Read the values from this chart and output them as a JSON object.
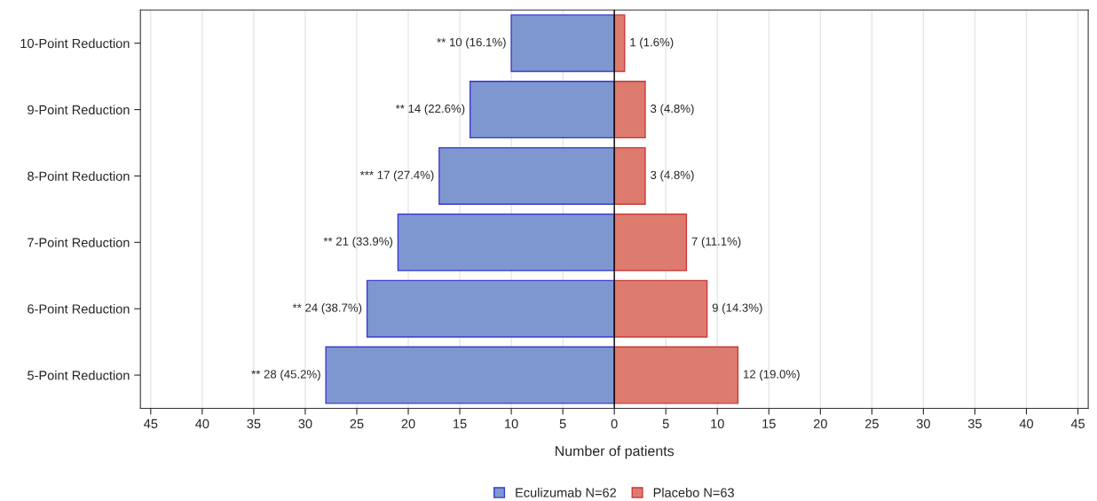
{
  "chart_data": {
    "type": "bar",
    "orientation": "horizontal",
    "xlabel": "Number of patients",
    "categories": [
      "10-Point Reduction",
      "9-Point Reduction",
      "8-Point Reduction",
      "7-Point Reduction",
      "6-Point Reduction",
      "5-Point Reduction"
    ],
    "series": [
      {
        "name": "Eculizumab N=62",
        "color": "#7f97cf",
        "values": [
          10,
          14,
          17,
          21,
          24,
          28
        ],
        "base": [
          -10,
          -14,
          -17,
          -21,
          -24,
          -28
        ],
        "value_labels": [
          "** 10 (16.1%)",
          "** 14 (22.6%)",
          "*** 17 (27.4%)",
          "** 21 (33.9%)",
          "** 24 (38.7%)",
          "** 28 (45.2%)"
        ]
      },
      {
        "name": "Placebo N=63",
        "color": "#dd7b6e",
        "values": [
          1,
          3,
          3,
          7,
          9,
          12
        ],
        "value_labels": [
          "1 (1.6%)",
          "3 (4.8%)",
          "3 (4.8%)",
          "7 (11.1%)",
          "9 (14.3%)",
          "12 (19.0%)"
        ]
      }
    ],
    "xlim": [
      -46,
      46
    ],
    "xticks": [
      {
        "value": -45,
        "label": "45"
      },
      {
        "value": -40,
        "label": "40"
      },
      {
        "value": -35,
        "label": "35"
      },
      {
        "value": -30,
        "label": "30"
      },
      {
        "value": -25,
        "label": "25"
      },
      {
        "value": -20,
        "label": "20"
      },
      {
        "value": -15,
        "label": "15"
      },
      {
        "value": -10,
        "label": "10"
      },
      {
        "value": -5,
        "label": "5"
      },
      0,
      5,
      10,
      15,
      20,
      25,
      30,
      35,
      40,
      45
    ],
    "ref_lines": [
      {
        "axis": "x",
        "value": 0,
        "color": "#000000"
      }
    ],
    "grid": "x",
    "legend": "bottom"
  }
}
